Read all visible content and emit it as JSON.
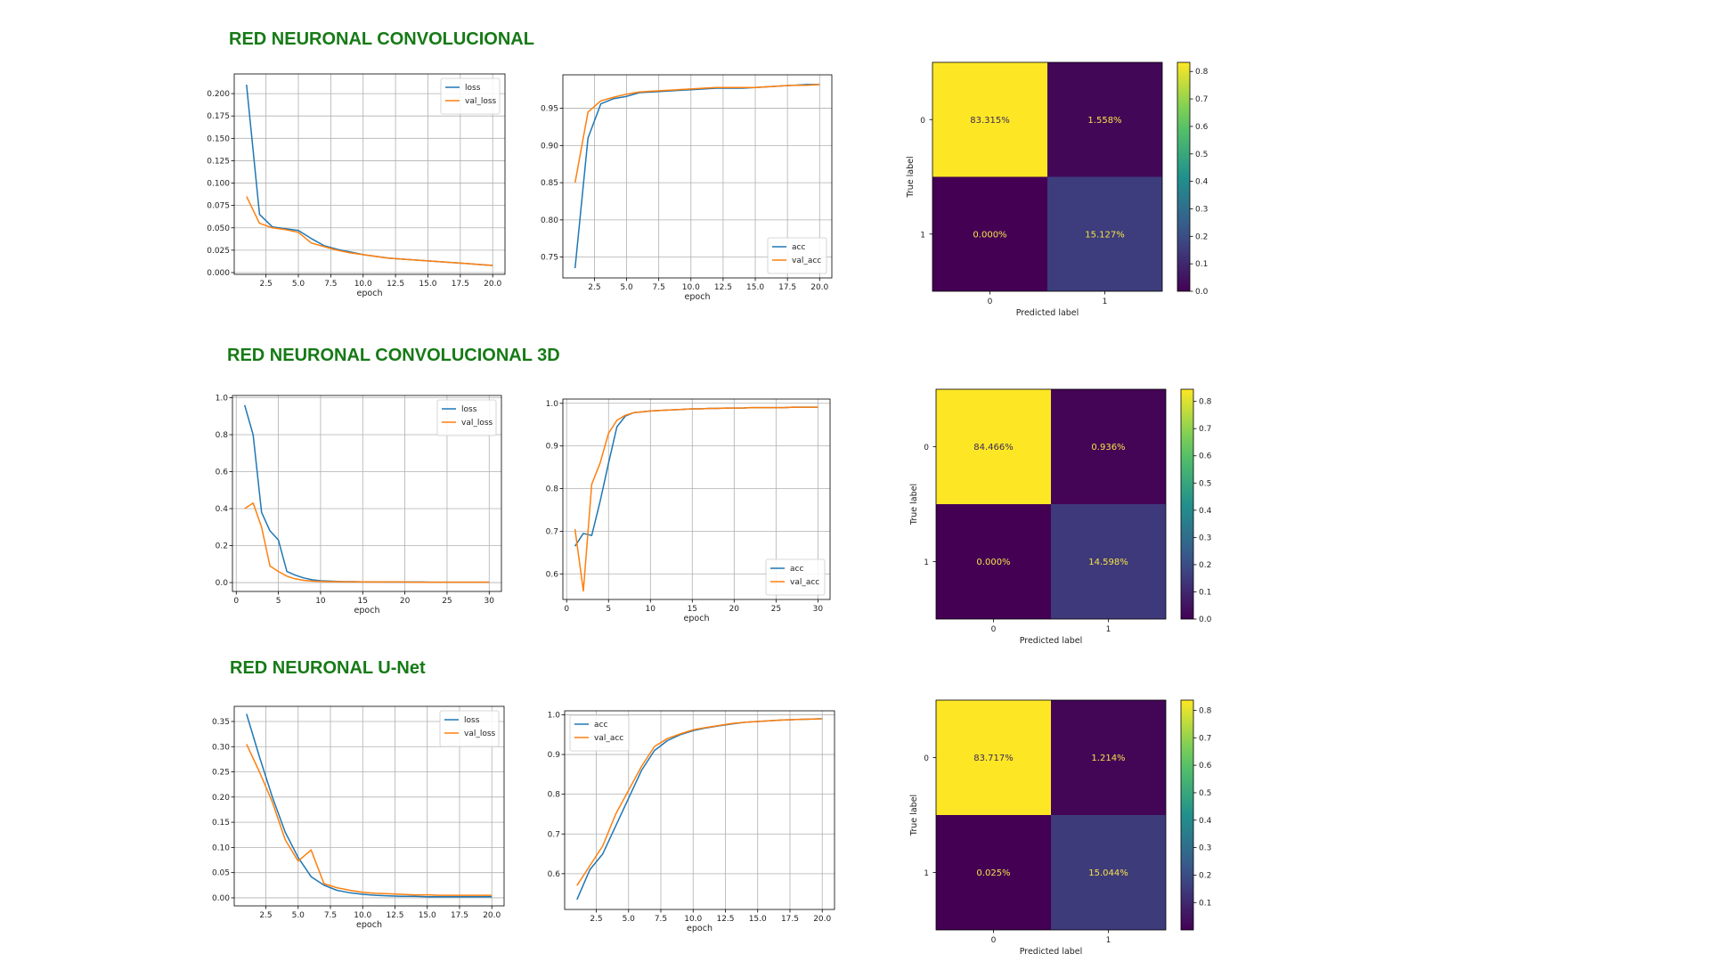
{
  "sections": [
    {
      "title": "RED NEURONAL CONVOLUCIONAL"
    },
    {
      "title": "RED NEURONAL CONVOLUCIONAL 3D"
    },
    {
      "title": "RED NEURONAL U-Net"
    }
  ],
  "colors": {
    "train": "#1f77b4",
    "val": "#ff7f0e",
    "title": "#167a16"
  },
  "chart_data": [
    {
      "type": "line",
      "id": "cnn-loss",
      "xlabel": "epoch",
      "ylabel": "",
      "x": [
        1,
        2,
        3,
        4,
        5,
        6,
        7,
        8,
        9,
        10,
        11,
        12,
        13,
        14,
        15,
        16,
        17,
        18,
        19,
        20
      ],
      "xlim": [
        0.05,
        20.95
      ],
      "ylim": [
        -0.002,
        0.222
      ],
      "xticks": [
        2.5,
        5.0,
        7.5,
        10.0,
        12.5,
        15.0,
        17.5,
        20.0
      ],
      "xtick_labels": [
        "2.5",
        "5.0",
        "7.5",
        "10.0",
        "12.5",
        "15.0",
        "17.5",
        "20.0"
      ],
      "yticks": [
        0,
        0.025,
        0.05,
        0.075,
        0.1,
        0.125,
        0.15,
        0.175,
        0.2
      ],
      "ytick_labels": [
        "0.000",
        "0.025",
        "0.050",
        "0.075",
        "0.100",
        "0.125",
        "0.150",
        "0.175",
        "0.200"
      ],
      "grid": true,
      "legend": "top-right",
      "series": [
        {
          "name": "loss",
          "color": "train",
          "values": [
            0.21,
            0.065,
            0.051,
            0.049,
            0.047,
            0.038,
            0.03,
            0.026,
            0.023,
            0.02,
            0.018,
            0.016,
            0.015,
            0.014,
            0.013,
            0.012,
            0.011,
            0.01,
            0.009,
            0.008
          ]
        },
        {
          "name": "val_loss",
          "color": "val",
          "values": [
            0.085,
            0.055,
            0.05,
            0.048,
            0.045,
            0.033,
            0.029,
            0.025,
            0.022,
            0.02,
            0.018,
            0.016,
            0.015,
            0.014,
            0.013,
            0.012,
            0.011,
            0.01,
            0.009,
            0.008
          ]
        }
      ]
    },
    {
      "type": "line",
      "id": "cnn-acc",
      "xlabel": "epoch",
      "ylabel": "",
      "x": [
        1,
        2,
        3,
        4,
        5,
        6,
        7,
        8,
        9,
        10,
        11,
        12,
        13,
        14,
        15,
        16,
        17,
        18,
        19,
        20
      ],
      "xlim": [
        0.05,
        20.95
      ],
      "ylim": [
        0.722,
        0.995
      ],
      "xticks": [
        2.5,
        5.0,
        7.5,
        10.0,
        12.5,
        15.0,
        17.5,
        20.0
      ],
      "xtick_labels": [
        "2.5",
        "5.0",
        "7.5",
        "10.0",
        "12.5",
        "15.0",
        "17.5",
        "20.0"
      ],
      "yticks": [
        0.75,
        0.8,
        0.85,
        0.9,
        0.95
      ],
      "ytick_labels": [
        "0.75",
        "0.80",
        "0.85",
        "0.90",
        "0.95"
      ],
      "grid": true,
      "legend": "bottom-right",
      "series": [
        {
          "name": "acc",
          "color": "train",
          "values": [
            0.735,
            0.91,
            0.956,
            0.963,
            0.966,
            0.971,
            0.972,
            0.973,
            0.974,
            0.975,
            0.976,
            0.977,
            0.977,
            0.977,
            0.978,
            0.979,
            0.98,
            0.981,
            0.982,
            0.982
          ]
        },
        {
          "name": "val_acc",
          "color": "val",
          "values": [
            0.85,
            0.945,
            0.96,
            0.965,
            0.969,
            0.972,
            0.973,
            0.974,
            0.975,
            0.976,
            0.977,
            0.978,
            0.978,
            0.978,
            0.978,
            0.979,
            0.98,
            0.981,
            0.981,
            0.982
          ]
        }
      ]
    },
    {
      "type": "heatmap",
      "id": "cnn-cm",
      "matrix": [
        [
          0.83315,
          0.01558
        ],
        [
          0.0,
          0.15127
        ]
      ],
      "cell_labels": [
        [
          "83.315%",
          "1.558%"
        ],
        [
          "0.000%",
          "15.127%"
        ]
      ],
      "xticks": [
        "0",
        "1"
      ],
      "yticks": [
        "0",
        "1"
      ],
      "xlabel": "Predicted label",
      "ylabel": "True label",
      "colorbar_range": [
        0.0,
        0.8332
      ],
      "colorbar_ticks": [
        0.0,
        0.1,
        0.2,
        0.3,
        0.4,
        0.5,
        0.6,
        0.7,
        0.8
      ],
      "colorbar_labels": [
        "0.0",
        "0.1",
        "0.2",
        "0.3",
        "0.4",
        "0.5",
        "0.6",
        "0.7",
        "0.8"
      ],
      "colormap": "viridis"
    },
    {
      "type": "line",
      "id": "cnn3d-loss",
      "xlabel": "epoch",
      "ylabel": "",
      "x": [
        1,
        2,
        3,
        4,
        5,
        6,
        7,
        8,
        9,
        10,
        11,
        12,
        13,
        14,
        15,
        16,
        17,
        18,
        19,
        20,
        21,
        22,
        23,
        24,
        25,
        26,
        27,
        28,
        29,
        30
      ],
      "xlim": [
        -0.45,
        31.45
      ],
      "ylim": [
        -0.048,
        1.012
      ],
      "xticks": [
        0,
        5,
        10,
        15,
        20,
        25,
        30
      ],
      "xtick_labels": [
        "0",
        "5",
        "10",
        "15",
        "20",
        "25",
        "30"
      ],
      "yticks": [
        0,
        0.2,
        0.4,
        0.6,
        0.8,
        1.0
      ],
      "ytick_labels": [
        "0.0",
        "0.2",
        "0.4",
        "0.6",
        "0.8",
        "1.0"
      ],
      "grid": true,
      "legend": "top-right",
      "series": [
        {
          "name": "loss",
          "color": "train",
          "values": [
            0.96,
            0.8,
            0.38,
            0.28,
            0.23,
            0.06,
            0.04,
            0.025,
            0.015,
            0.01,
            0.008,
            0.006,
            0.005,
            0.005,
            0.004,
            0.004,
            0.004,
            0.003,
            0.003,
            0.003,
            0.003,
            0.003,
            0.002,
            0.002,
            0.002,
            0.002,
            0.002,
            0.002,
            0.002,
            0.002
          ]
        },
        {
          "name": "val_loss",
          "color": "val",
          "values": [
            0.4,
            0.43,
            0.3,
            0.09,
            0.06,
            0.035,
            0.02,
            0.012,
            0.008,
            0.006,
            0.005,
            0.005,
            0.004,
            0.004,
            0.004,
            0.003,
            0.003,
            0.003,
            0.003,
            0.003,
            0.002,
            0.002,
            0.002,
            0.002,
            0.002,
            0.002,
            0.002,
            0.002,
            0.002,
            0.002
          ]
        }
      ]
    },
    {
      "type": "line",
      "id": "cnn3d-acc",
      "xlabel": "epoch",
      "ylabel": "",
      "x": [
        1,
        2,
        3,
        4,
        5,
        6,
        7,
        8,
        9,
        10,
        11,
        12,
        13,
        14,
        15,
        16,
        17,
        18,
        19,
        20,
        21,
        22,
        23,
        24,
        25,
        26,
        27,
        28,
        29,
        30
      ],
      "xlim": [
        -0.45,
        31.45
      ],
      "ylim": [
        0.54,
        1.01
      ],
      "xticks": [
        0,
        5,
        10,
        15,
        20,
        25,
        30
      ],
      "xtick_labels": [
        "0",
        "5",
        "10",
        "15",
        "20",
        "25",
        "30"
      ],
      "yticks": [
        0.6,
        0.7,
        0.8,
        0.9,
        1.0
      ],
      "ytick_labels": [
        "0.6",
        "0.7",
        "0.8",
        "0.9",
        "1.0"
      ],
      "grid": true,
      "legend": "bottom-right",
      "series": [
        {
          "name": "acc",
          "color": "train",
          "values": [
            0.665,
            0.695,
            0.69,
            0.77,
            0.86,
            0.945,
            0.97,
            0.978,
            0.98,
            0.982,
            0.983,
            0.984,
            0.985,
            0.986,
            0.987,
            0.987,
            0.988,
            0.988,
            0.989,
            0.989,
            0.989,
            0.99,
            0.99,
            0.99,
            0.99,
            0.99,
            0.991,
            0.991,
            0.991,
            0.991
          ]
        },
        {
          "name": "val_acc",
          "color": "val",
          "values": [
            0.705,
            0.56,
            0.81,
            0.86,
            0.93,
            0.96,
            0.972,
            0.978,
            0.98,
            0.982,
            0.983,
            0.984,
            0.985,
            0.986,
            0.987,
            0.987,
            0.988,
            0.988,
            0.989,
            0.989,
            0.989,
            0.99,
            0.99,
            0.99,
            0.99,
            0.99,
            0.991,
            0.991,
            0.991,
            0.991
          ]
        }
      ]
    },
    {
      "type": "heatmap",
      "id": "cnn3d-cm",
      "matrix": [
        [
          0.84466,
          0.00936
        ],
        [
          0.0,
          0.14598
        ]
      ],
      "cell_labels": [
        [
          "84.466%",
          "0.936%"
        ],
        [
          "0.000%",
          "14.598%"
        ]
      ],
      "xticks": [
        "0",
        "1"
      ],
      "yticks": [
        "0",
        "1"
      ],
      "xlabel": "Predicted label",
      "ylabel": "True label",
      "colorbar_range": [
        0.0,
        0.8447
      ],
      "colorbar_ticks": [
        0.0,
        0.1,
        0.2,
        0.3,
        0.4,
        0.5,
        0.6,
        0.7,
        0.8
      ],
      "colorbar_labels": [
        "0.0",
        "0.1",
        "0.2",
        "0.3",
        "0.4",
        "0.5",
        "0.6",
        "0.7",
        "0.8"
      ],
      "colormap": "viridis"
    },
    {
      "type": "line",
      "id": "unet-loss",
      "xlabel": "epoch",
      "ylabel": "",
      "x": [
        1,
        2,
        3,
        4,
        5,
        6,
        7,
        8,
        9,
        10,
        11,
        12,
        13,
        14,
        15,
        16,
        17,
        18,
        19,
        20
      ],
      "xlim": [
        0.05,
        20.95
      ],
      "ylim": [
        -0.016,
        0.38
      ],
      "xticks": [
        2.5,
        5.0,
        7.5,
        10.0,
        12.5,
        15.0,
        17.5,
        20.0
      ],
      "xtick_labels": [
        "2.5",
        "5.0",
        "7.5",
        "10.0",
        "12.5",
        "15.0",
        "17.5",
        "20.0"
      ],
      "yticks": [
        0,
        0.05,
        0.1,
        0.15,
        0.2,
        0.25,
        0.3,
        0.35
      ],
      "ytick_labels": [
        "0.00",
        "0.05",
        "0.10",
        "0.15",
        "0.20",
        "0.25",
        "0.30",
        "0.35"
      ],
      "grid": true,
      "legend": "top-right",
      "series": [
        {
          "name": "loss",
          "color": "train",
          "values": [
            0.365,
            0.28,
            0.2,
            0.13,
            0.08,
            0.042,
            0.025,
            0.015,
            0.01,
            0.007,
            0.005,
            0.004,
            0.003,
            0.003,
            0.002,
            0.002,
            0.002,
            0.002,
            0.002,
            0.002
          ]
        },
        {
          "name": "val_loss",
          "color": "val",
          "values": [
            0.305,
            0.25,
            0.19,
            0.115,
            0.073,
            0.095,
            0.028,
            0.02,
            0.015,
            0.011,
            0.009,
            0.008,
            0.007,
            0.006,
            0.006,
            0.005,
            0.005,
            0.005,
            0.005,
            0.005
          ]
        }
      ]
    },
    {
      "type": "line",
      "id": "unet-acc",
      "xlabel": "epoch",
      "ylabel": "",
      "x": [
        1,
        2,
        3,
        4,
        5,
        6,
        7,
        8,
        9,
        10,
        11,
        12,
        13,
        14,
        15,
        16,
        17,
        18,
        19,
        20
      ],
      "xlim": [
        0.05,
        20.95
      ],
      "ylim": [
        0.51,
        1.01
      ],
      "xticks": [
        2.5,
        5.0,
        7.5,
        10.0,
        12.5,
        15.0,
        17.5,
        20.0
      ],
      "xtick_labels": [
        "2.5",
        "5.0",
        "7.5",
        "10.0",
        "12.5",
        "15.0",
        "17.5",
        "20.0"
      ],
      "yticks": [
        0.6,
        0.7,
        0.8,
        0.9,
        1.0
      ],
      "ytick_labels": [
        "0.6",
        "0.7",
        "0.8",
        "0.9",
        "1.0"
      ],
      "grid": true,
      "legend": "top-left",
      "series": [
        {
          "name": "acc",
          "color": "train",
          "values": [
            0.535,
            0.61,
            0.65,
            0.72,
            0.79,
            0.86,
            0.91,
            0.935,
            0.95,
            0.96,
            0.967,
            0.972,
            0.977,
            0.981,
            0.983,
            0.985,
            0.987,
            0.988,
            0.989,
            0.99
          ]
        },
        {
          "name": "val_acc",
          "color": "val",
          "values": [
            0.57,
            0.62,
            0.67,
            0.75,
            0.81,
            0.87,
            0.92,
            0.94,
            0.952,
            0.962,
            0.968,
            0.973,
            0.978,
            0.981,
            0.983,
            0.985,
            0.987,
            0.988,
            0.989,
            0.99
          ]
        }
      ]
    },
    {
      "type": "heatmap",
      "id": "unet-cm",
      "matrix": [
        [
          0.83717,
          0.01214
        ],
        [
          0.00025,
          0.15044
        ]
      ],
      "cell_labels": [
        [
          "83.717%",
          "1.214%"
        ],
        [
          "0.025%",
          "15.044%"
        ]
      ],
      "xticks": [
        "0",
        "1"
      ],
      "yticks": [
        "0",
        "1"
      ],
      "xlabel": "Predicted label",
      "ylabel": "True label",
      "colorbar_range": [
        0.00025,
        0.8372
      ],
      "colorbar_ticks": [
        0.1,
        0.2,
        0.3,
        0.4,
        0.5,
        0.6,
        0.7,
        0.8
      ],
      "colorbar_labels": [
        "0.1",
        "0.2",
        "0.3",
        "0.4",
        "0.5",
        "0.6",
        "0.7",
        "0.8"
      ],
      "colormap": "viridis"
    }
  ]
}
